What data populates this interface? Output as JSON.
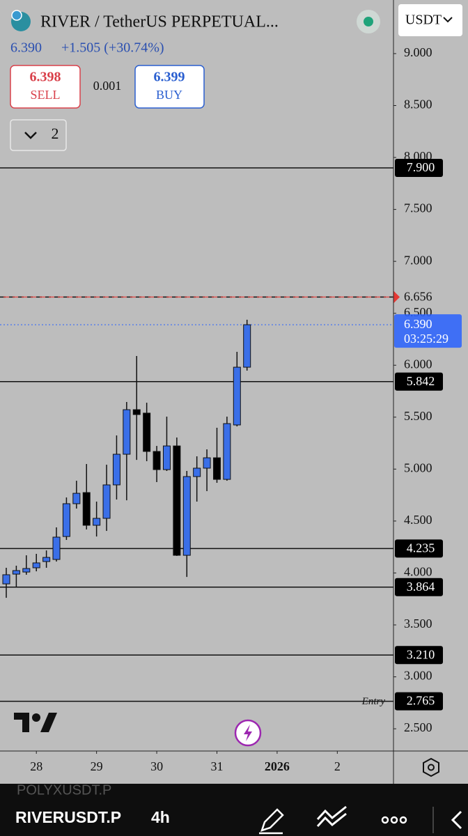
{
  "header": {
    "symbol_title": "RIVER / TetherUS PERPETUAL...",
    "currency": "USDT",
    "last_price": "6.390",
    "change": "+1.505 (+30.74%)",
    "sell_price": "6.398",
    "sell_label": "SELL",
    "quantity": "0.001",
    "buy_price": "6.399",
    "buy_label": "BUY",
    "indicators_count": "2"
  },
  "chart_data": {
    "type": "candlestick",
    "open": [
      3.895,
      3.989,
      4.009,
      4.05,
      4.11,
      4.13,
      4.351,
      4.667,
      4.774,
      4.459,
      4.526,
      4.848,
      5.143,
      5.572,
      5.539,
      5.17,
      4.995,
      5.223,
      4.17,
      4.928,
      5.009,
      5.109,
      4.901,
      5.425,
      5.981
    ],
    "high": [
      4.05,
      4.07,
      4.17,
      4.184,
      4.217,
      4.439,
      4.727,
      4.888,
      5.049,
      4.687,
      5.042,
      5.324,
      5.646,
      6.089,
      5.639,
      5.223,
      5.505,
      5.304,
      4.982,
      5.123,
      5.19,
      5.398,
      5.505,
      6.129,
      6.438
    ],
    "low": [
      3.761,
      3.862,
      3.983,
      4.016,
      4.05,
      4.11,
      4.318,
      4.62,
      4.419,
      4.351,
      4.405,
      4.707,
      4.7,
      5.089,
      5.076,
      4.875,
      4.982,
      4.164,
      3.962,
      4.687,
      4.788,
      4.868,
      4.888,
      5.411,
      5.948
    ],
    "close": [
      3.983,
      4.023,
      4.043,
      4.097,
      4.15,
      4.345,
      4.667,
      4.767,
      4.459,
      4.526,
      4.848,
      5.143,
      5.572,
      5.525,
      5.17,
      4.995,
      5.223,
      4.17,
      4.928,
      5.009,
      5.109,
      4.901,
      5.438,
      5.981,
      6.39
    ],
    "up_color": "#3a6fe8",
    "down_color": "#000000",
    "ylim": [
      2.286,
      9.516
    ],
    "yticks": [
      {
        "value": 9,
        "label": "9.000"
      },
      {
        "value": 8.5,
        "label": "8.500"
      },
      {
        "value": 8,
        "label": "8.000"
      },
      {
        "value": 7.5,
        "label": "7.500"
      },
      {
        "value": 7,
        "label": "7.000"
      },
      {
        "value": 6.5,
        "label": "6.500"
      },
      {
        "value": 6,
        "label": "6.000"
      },
      {
        "value": 5.5,
        "label": "5.500"
      },
      {
        "value": 5,
        "label": "5.000"
      },
      {
        "value": 4.5,
        "label": "4.500"
      },
      {
        "value": 4,
        "label": "4.000"
      },
      {
        "value": 3.5,
        "label": "3.500"
      },
      {
        "value": 3,
        "label": "3.000"
      },
      {
        "value": 2.5,
        "label": "2.500"
      }
    ],
    "xlim": [
      -0.625,
      38.6
    ],
    "xticks": [
      {
        "value": 3,
        "label": "28"
      },
      {
        "value": 9,
        "label": "29"
      },
      {
        "value": 15,
        "label": "30"
      },
      {
        "value": 21,
        "label": "31"
      },
      {
        "value": 27,
        "label": "2026"
      },
      {
        "value": 33,
        "label": "2"
      }
    ],
    "levels": [
      {
        "value": 7.9,
        "label": "7.900"
      },
      {
        "value": 5.842,
        "label": "5.842"
      },
      {
        "value": 4.235,
        "label": "4.235"
      },
      {
        "value": 3.864,
        "label": "3.864"
      },
      {
        "value": 3.21,
        "label": "3.210"
      },
      {
        "value": 2.765,
        "label": "2.765",
        "tag": "Entry"
      }
    ],
    "alert_line": {
      "value": 6.656,
      "label": "6.656",
      "color": "#e53935"
    },
    "last_price_line": {
      "value": 6.39,
      "label": "6.390",
      "countdown": "03:25:29",
      "color": "#2962ff"
    }
  },
  "footer": {
    "previous_symbol": "POLYXUSDT.P",
    "symbol": "RIVERUSDT.P",
    "interval": "4h"
  }
}
